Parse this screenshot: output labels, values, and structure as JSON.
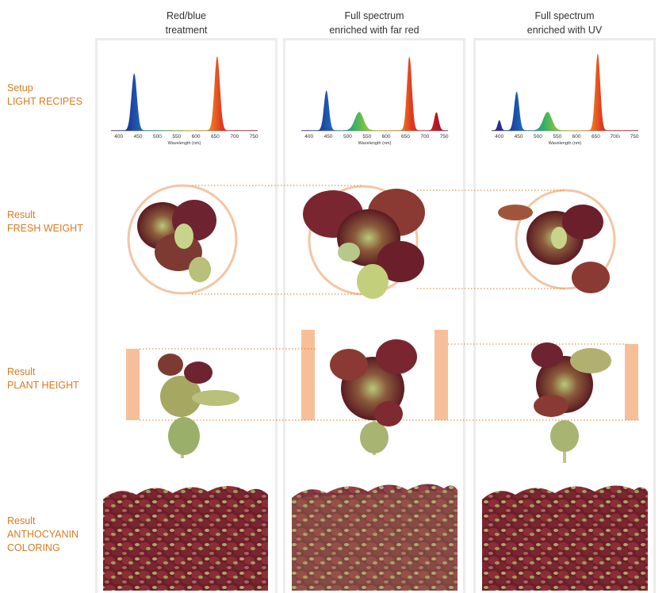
{
  "columns": [
    {
      "line1": "Red/blue",
      "line2": "treatment"
    },
    {
      "line1": "Full spectrum",
      "line2": "enriched with far red"
    },
    {
      "line1": "Full spectrum",
      "line2": "enriched with UV"
    }
  ],
  "rows": [
    {
      "prefix": "Setup",
      "name": "LIGHT RECIPES"
    },
    {
      "prefix": "Result",
      "name": "FRESH WEIGHT"
    },
    {
      "prefix": "Result",
      "name": "PLANT HEIGHT"
    },
    {
      "prefix": "Result",
      "name": "ANTHOCYANIN",
      "name2": "COLORING"
    }
  ],
  "spectrum": {
    "xlabel": "Wavelength (nm)",
    "ticks": [
      "400",
      "450",
      "500",
      "550",
      "600",
      "650",
      "700",
      "750"
    ],
    "ticks_uv": [
      "400",
      "450",
      "500",
      "550",
      "600",
      "650",
      "700ı",
      "750"
    ],
    "peaks": [
      [
        {
          "nm": 440,
          "h": 1.0,
          "w": 10
        },
        {
          "nm": 655,
          "h": 1.3,
          "w": 10
        }
      ],
      [
        {
          "nm": 445,
          "h": 0.7,
          "w": 9
        },
        {
          "nm": 530,
          "h": 0.32,
          "w": 16
        },
        {
          "nm": 660,
          "h": 1.3,
          "w": 9
        },
        {
          "nm": 730,
          "h": 0.32,
          "w": 8
        }
      ],
      [
        {
          "nm": 400,
          "h": 0.18,
          "w": 6
        },
        {
          "nm": 445,
          "h": 0.68,
          "w": 9
        },
        {
          "nm": 525,
          "h": 0.32,
          "w": 16
        },
        {
          "nm": 655,
          "h": 1.35,
          "w": 9
        }
      ]
    ]
  },
  "colors": {
    "accent": "#d97b22",
    "ring": "#f2c6a4",
    "bar": "#f7bf99",
    "column_border": "#ececec",
    "blue": "#1e3a9a",
    "red": "#d8202a"
  }
}
